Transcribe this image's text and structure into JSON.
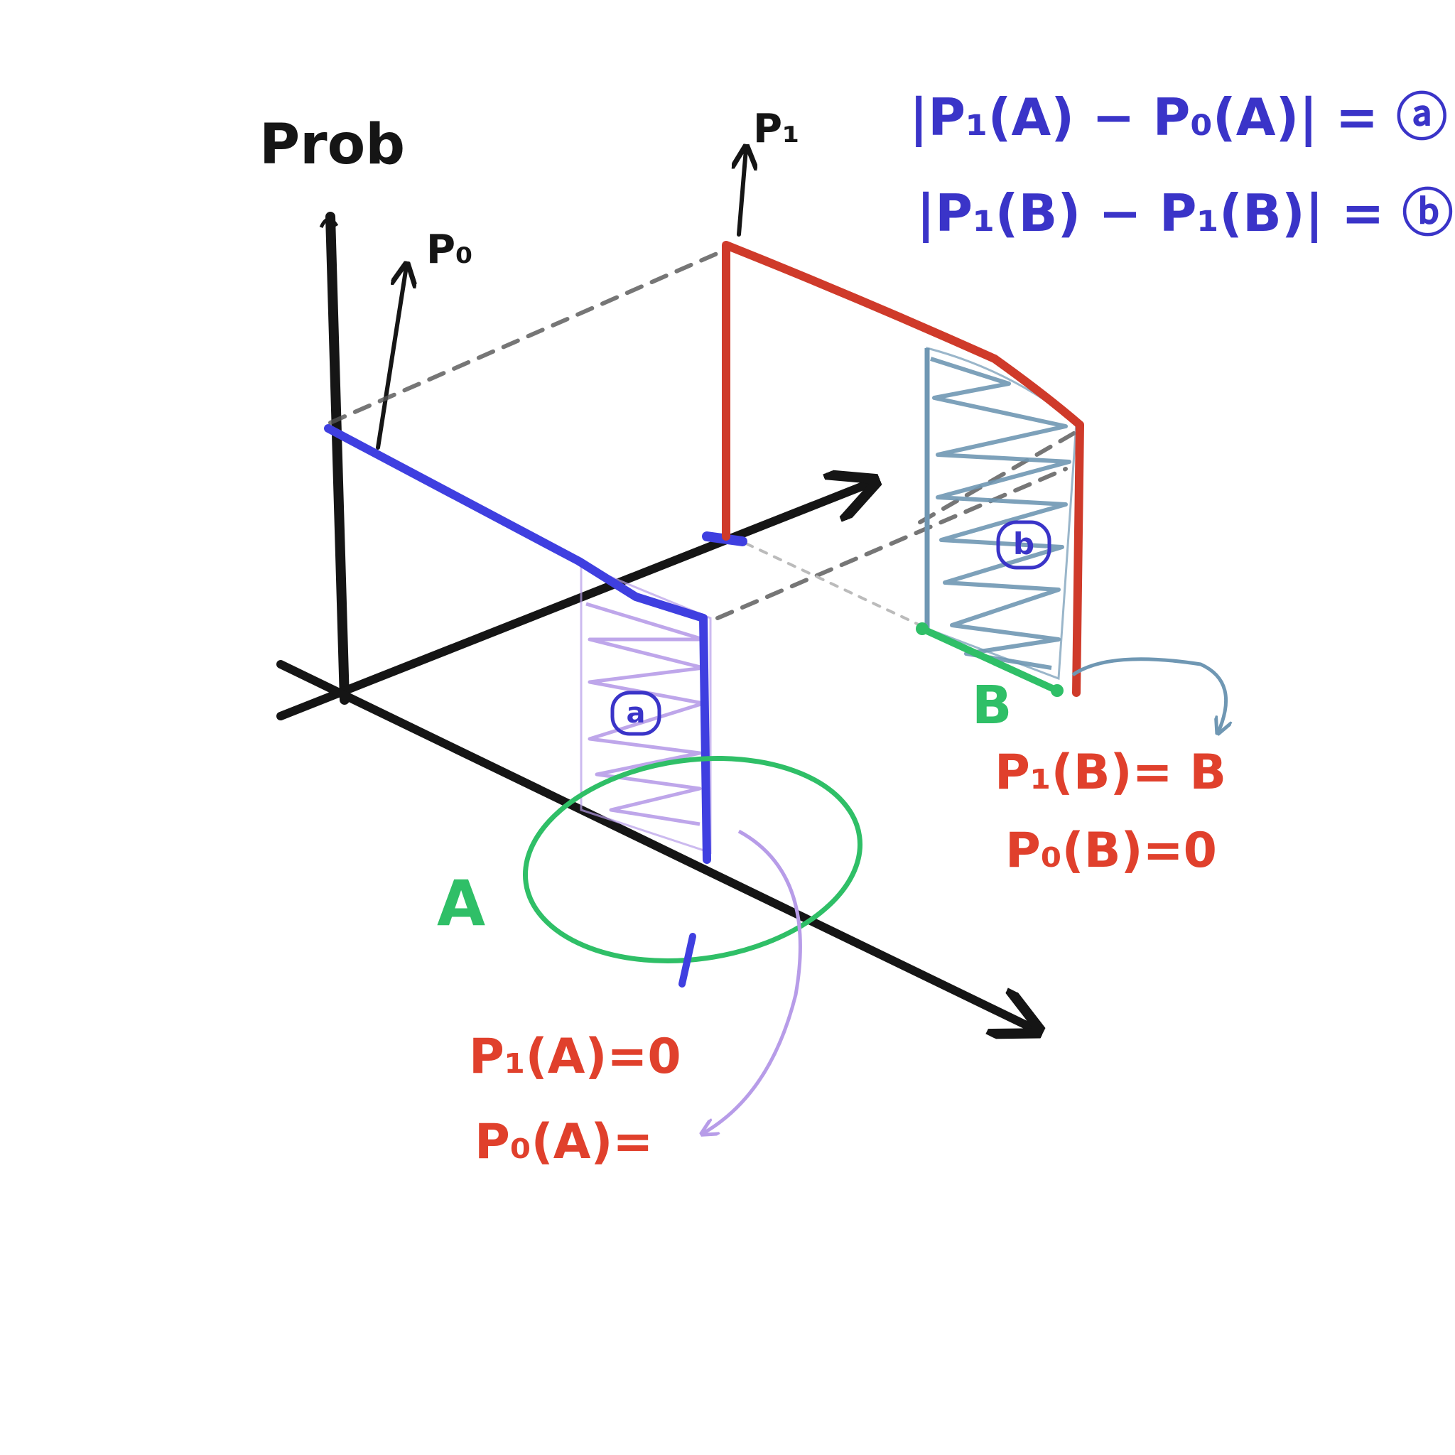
{
  "axis_label": "Prob",
  "distribution_labels": {
    "p0": "P₀",
    "p1": "P₁"
  },
  "equations": {
    "a": "|P₁(A) − P₀(A)| = ⓐ",
    "b": "|P₁(B) − P₁(B)| = ⓑ"
  },
  "regions": {
    "a": {
      "marker": "a",
      "set_label": "A"
    },
    "b": {
      "marker": "b",
      "set_label": "B"
    }
  },
  "annotations": {
    "p1_B": "P₁(B)= B",
    "p0_B": "P₀(B)=0",
    "p1_A": "P₁(A)=0",
    "p0_A": "P₀(A)="
  },
  "colors": {
    "axes": "#151515",
    "p0": "#3f3fe0",
    "p1": "#cf3a2a",
    "region_a": "#b79ce8",
    "region_b": "#6f97b3",
    "sets": "#2fbf67",
    "equations": "#3a34c8",
    "annotations": "#e0402c"
  }
}
